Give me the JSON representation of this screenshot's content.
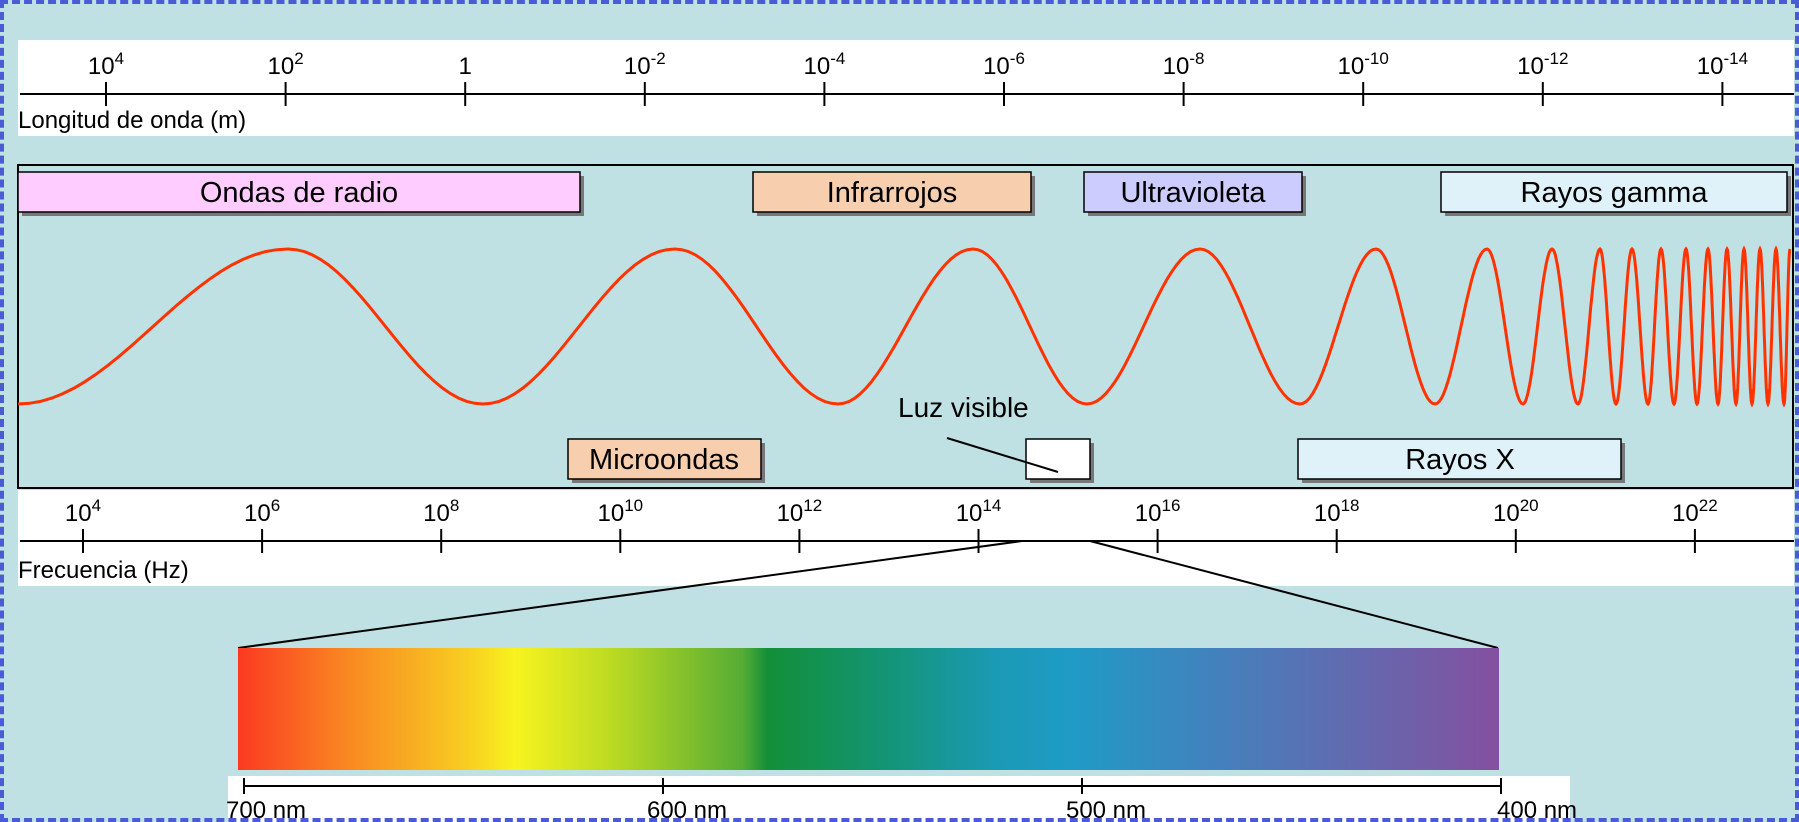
{
  "wavelength_axis": {
    "label": "Longitud de onda (m)",
    "ticks": [
      {
        "base": "10",
        "exp": "4"
      },
      {
        "base": "10",
        "exp": "2"
      },
      {
        "base": "1",
        "exp": ""
      },
      {
        "base": "10",
        "exp": "-2"
      },
      {
        "base": "10",
        "exp": "-4"
      },
      {
        "base": "10",
        "exp": "-6"
      },
      {
        "base": "10",
        "exp": "-8"
      },
      {
        "base": "10",
        "exp": "-10"
      },
      {
        "base": "10",
        "exp": "-12"
      },
      {
        "base": "10",
        "exp": "-14"
      }
    ]
  },
  "frequency_axis": {
    "label": "Frecuencia (Hz)",
    "ticks": [
      {
        "base": "10",
        "exp": "4"
      },
      {
        "base": "10",
        "exp": "6"
      },
      {
        "base": "10",
        "exp": "8"
      },
      {
        "base": "10",
        "exp": "10"
      },
      {
        "base": "10",
        "exp": "12"
      },
      {
        "base": "10",
        "exp": "14"
      },
      {
        "base": "10",
        "exp": "16"
      },
      {
        "base": "10",
        "exp": "18"
      },
      {
        "base": "10",
        "exp": "20"
      },
      {
        "base": "10",
        "exp": "22"
      }
    ]
  },
  "bands": {
    "radio": "Ondas de radio",
    "infrared": "Infrarrojos",
    "ultraviolet": "Ultravioleta",
    "gamma": "Rayos gamma",
    "microwave": "Microondas",
    "visible": "Luz visible",
    "xray": "Rayos X"
  },
  "visible_axis": {
    "ticks": [
      "700 nm",
      "600 nm",
      "500 nm",
      "400 nm"
    ]
  },
  "colors": {
    "background": "#bfe1e4",
    "wave": "#ff3300",
    "radio": "#ffccff",
    "infrared": "#f7cfaf",
    "ultraviolet": "#ccccff",
    "gamma": "#dff1f9",
    "microwave": "#f7cfaf",
    "xray": "#dff1f9"
  }
}
